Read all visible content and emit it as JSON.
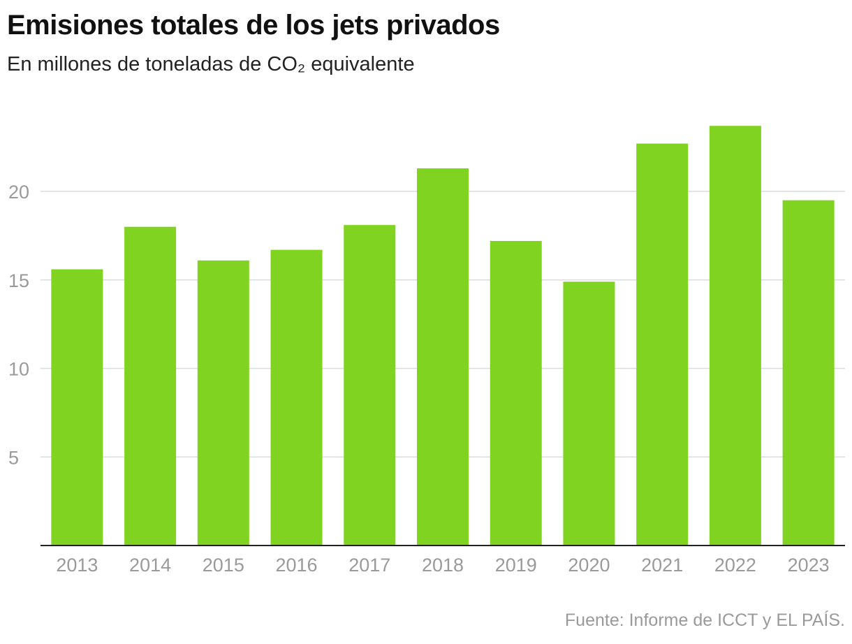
{
  "chart_data": {
    "type": "bar",
    "title": "Emisiones totales de los jets privados",
    "subtitle": "En millones de toneladas de CO₂ equivalente",
    "categories": [
      "2013",
      "2014",
      "2015",
      "2016",
      "2017",
      "2018",
      "2019",
      "2020",
      "2021",
      "2022",
      "2023"
    ],
    "values": [
      15.6,
      18.0,
      16.1,
      16.7,
      18.1,
      21.3,
      17.2,
      14.9,
      22.7,
      23.7,
      19.5
    ],
    "yticks": [
      "5",
      "10",
      "15",
      "20"
    ],
    "ylim": [
      0,
      25
    ],
    "xlabel": "",
    "ylabel": "",
    "grid": true,
    "bar_color": "#80d421",
    "source": "Fuente: Informe de ICCT y EL PAÍS."
  }
}
